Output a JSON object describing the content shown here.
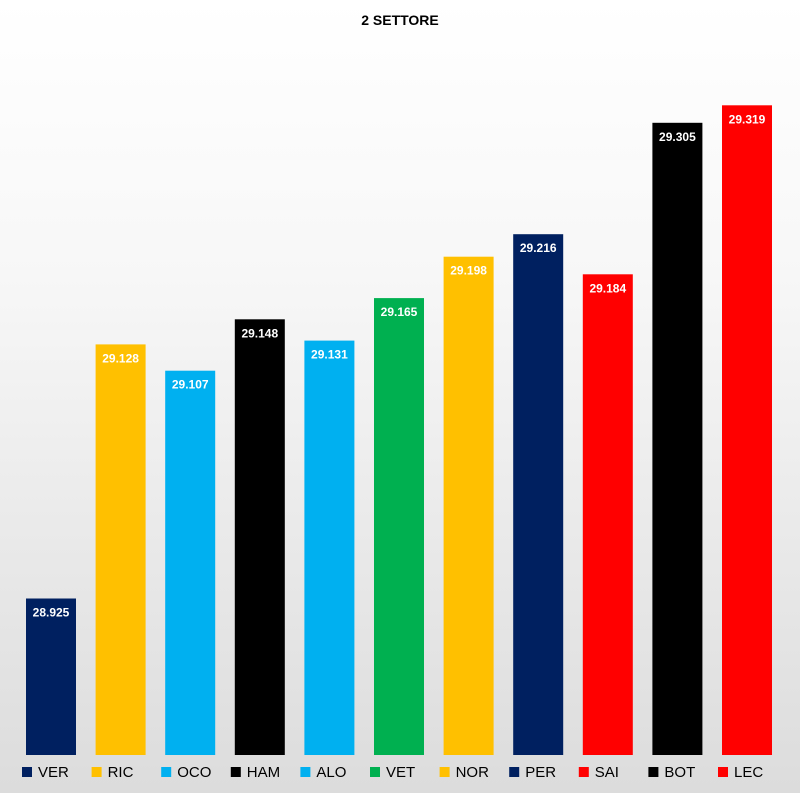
{
  "chart_data": {
    "type": "bar",
    "title": "2 SETTORE",
    "xlabel": "",
    "ylabel": "",
    "grid": false,
    "legend_position": "bottom",
    "value_label_position": "inside-top",
    "categories": [
      "VER",
      "RIC",
      "OCO",
      "HAM",
      "ALO",
      "VET",
      "NOR",
      "PER",
      "SAI",
      "BOT",
      "LEC"
    ],
    "values": [
      28.925,
      29.128,
      29.107,
      29.148,
      29.131,
      29.165,
      29.198,
      29.216,
      29.184,
      29.305,
      29.319
    ],
    "value_labels": [
      "28.925",
      "29.128",
      "29.107",
      "29.148",
      "29.131",
      "29.165",
      "29.198",
      "29.216",
      "29.184",
      "29.305",
      "29.319"
    ],
    "colors": [
      "#002060",
      "#FFC000",
      "#00B0F0",
      "#000000",
      "#00B0F0",
      "#00B050",
      "#FFC000",
      "#002060",
      "#FF0000",
      "#000000",
      "#FF0000"
    ]
  }
}
